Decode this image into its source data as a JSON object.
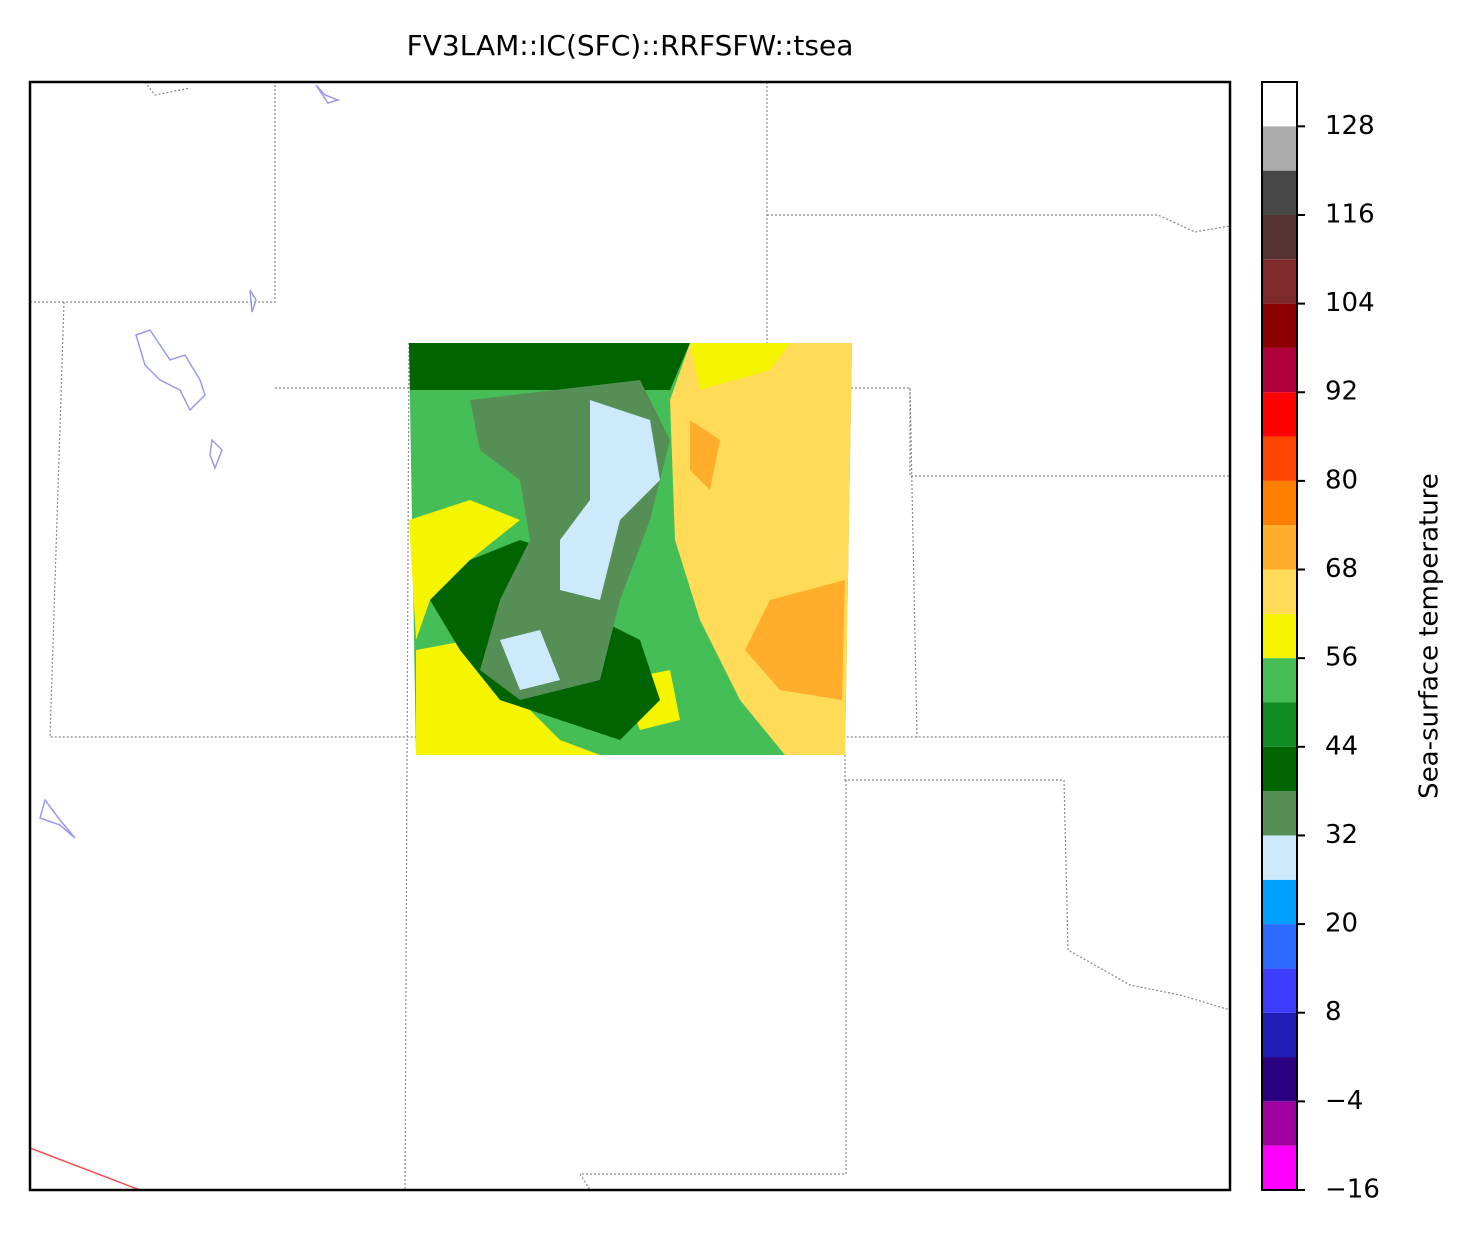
{
  "chart_data": {
    "type": "map",
    "title": "FV3LAM::IC(SFC)::RRFSFW::tsea",
    "colorbar": {
      "label": "Sea-surface temperature",
      "bounds": [
        -16,
        -10,
        -4,
        2,
        8,
        14,
        20,
        26,
        32,
        38,
        44,
        50,
        56,
        62,
        68,
        74,
        80,
        86,
        92,
        98,
        104,
        110,
        116,
        122,
        128,
        134
      ],
      "colors": [
        "#ff00ff",
        "#a000a0",
        "#2a007e",
        "#1e1eb4",
        "#3c3cff",
        "#2a6aff",
        "#00a0ff",
        "#cdeafd",
        "#568f56",
        "#006400",
        "#118b23",
        "#45be58",
        "#f5f500",
        "#ffdb58",
        "#ffad2a",
        "#ff7f00",
        "#ff4500",
        "#ff0000",
        "#b0003c",
        "#8b0000",
        "#7e2a2a",
        "#553333",
        "#474747",
        "#ababab",
        "#ffffff"
      ],
      "ticks": [
        {
          "value": -16,
          "label": "−16"
        },
        {
          "value": -4,
          "label": "−4"
        },
        8,
        20,
        32,
        44,
        56,
        68,
        80,
        92,
        104,
        116,
        128
      ]
    }
  }
}
